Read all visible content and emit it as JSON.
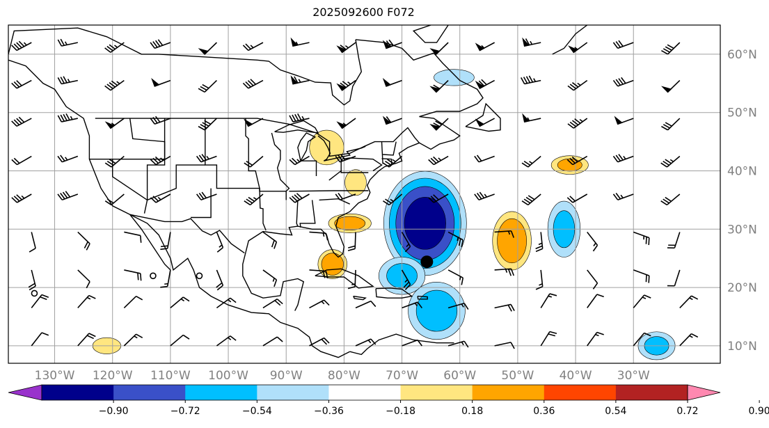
{
  "title": "2025092600 F072",
  "map": {
    "lon_range": [
      -138,
      -15
    ],
    "lat_range": [
      7,
      65
    ],
    "lon_ticks": [
      {
        "lon": -130,
        "label": "130°W"
      },
      {
        "lon": -120,
        "label": "120°W"
      },
      {
        "lon": -110,
        "label": "110°W"
      },
      {
        "lon": -100,
        "label": "100°W"
      },
      {
        "lon": -90,
        "label": "90°W"
      },
      {
        "lon": -80,
        "label": "80°W"
      },
      {
        "lon": -70,
        "label": "70°W"
      },
      {
        "lon": -60,
        "label": "60°W"
      },
      {
        "lon": -50,
        "label": "50°W"
      },
      {
        "lon": -40,
        "label": "40°W"
      },
      {
        "lon": -30,
        "label": "30°W"
      }
    ],
    "lat_ticks": [
      {
        "lat": 10,
        "label": "10°N"
      },
      {
        "lat": 20,
        "label": "20°N"
      },
      {
        "lat": 30,
        "label": "30°N"
      },
      {
        "lat": 40,
        "label": "40°N"
      },
      {
        "lat": 50,
        "label": "50°N"
      },
      {
        "lat": 60,
        "label": "60°N"
      }
    ],
    "tick_label_color": "#808080",
    "grid": true,
    "storm_marker": {
      "lon": -65.7,
      "lat": 24.4
    }
  },
  "colorbar": {
    "ticks": [
      "−0.90",
      "−0.72",
      "−0.54",
      "−0.36",
      "−0.18",
      "0.18",
      "0.36",
      "0.54",
      "0.72",
      "0.90"
    ],
    "colors": [
      "#9932cc",
      "#00008b",
      "#3a50c8",
      "#00bfff",
      "#b0e0fa",
      "#ffffff",
      "#ffe680",
      "#ffa500",
      "#ff4500",
      "#b22222",
      "#ff88b0"
    ],
    "extend": "both"
  },
  "chart_data": {
    "type": "heatmap",
    "title": "2025092600 F072",
    "levels": [
      -0.9,
      -0.72,
      -0.54,
      -0.36,
      -0.18,
      0.18,
      0.36,
      0.54,
      0.72,
      0.9
    ],
    "anomalies": [
      {
        "lon": -66,
        "lat": 31,
        "rx": 8,
        "ry": 10,
        "core": -0.8
      },
      {
        "lon": -64,
        "lat": 16,
        "rx": 6,
        "ry": 6,
        "core": -0.45
      },
      {
        "lon": -70,
        "lat": 22,
        "rx": 5,
        "ry": 4,
        "core": -0.4
      },
      {
        "lon": -42,
        "lat": 30,
        "rx": 3.5,
        "ry": 6,
        "core": -0.4
      },
      {
        "lon": -61,
        "lat": 56,
        "rx": 5,
        "ry": 2,
        "core": -0.25
      },
      {
        "lon": -79,
        "lat": 31,
        "rx": 4.5,
        "ry": 2,
        "core": 0.45
      },
      {
        "lon": -82,
        "lat": 24,
        "rx": 3,
        "ry": 3,
        "core": 0.5
      },
      {
        "lon": -51,
        "lat": 28,
        "rx": 4,
        "ry": 6,
        "core": 0.5
      },
      {
        "lon": -83,
        "lat": 44,
        "rx": 4,
        "ry": 4,
        "core": 0.3
      },
      {
        "lon": -41,
        "lat": 41,
        "rx": 4,
        "ry": 2,
        "core": 0.4
      },
      {
        "lon": -78,
        "lat": 38,
        "rx": 2.5,
        "ry": 3,
        "core": 0.3
      },
      {
        "lon": -121,
        "lat": 10,
        "rx": 3.5,
        "ry": 2,
        "core": 0.25
      },
      {
        "lon": -26,
        "lat": 10,
        "rx": 4,
        "ry": 3,
        "core": -0.4
      }
    ]
  }
}
